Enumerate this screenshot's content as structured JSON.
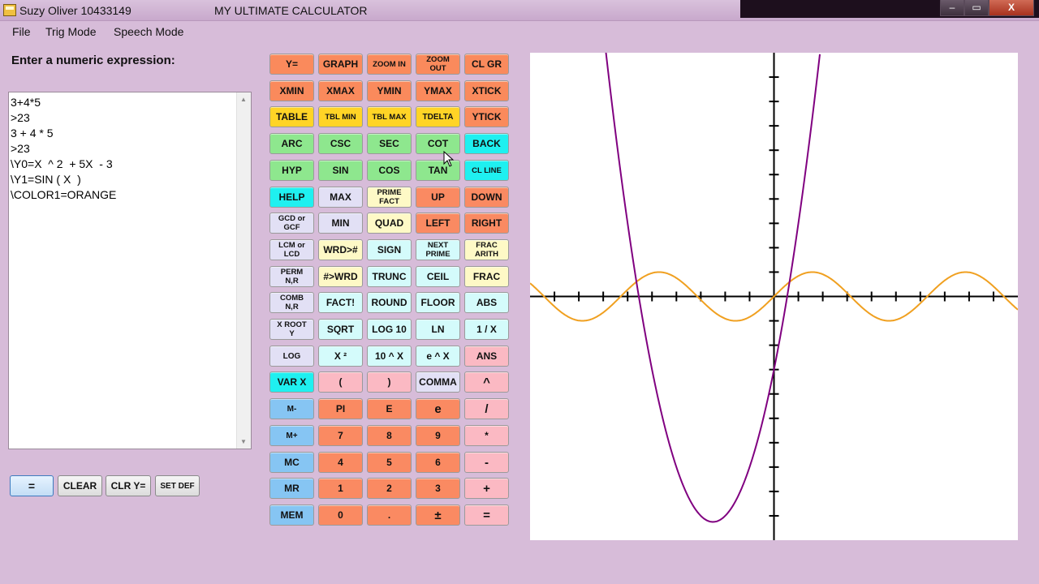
{
  "window": {
    "owner": "Suzy Oliver 10433149",
    "app_title": "MY ULTIMATE CALCULATOR",
    "min_symbol": "‒",
    "max_symbol": "▭",
    "close_symbol": "X"
  },
  "menu": [
    "File",
    "Trig Mode",
    "Speech Mode"
  ],
  "prompt_label": "Enter a numeric expression:",
  "expression_lines": [
    "3+4*5",
    ">23",
    "3 + 4 * 5",
    ">23",
    "\\Y0=X  ^ 2  + 5X  - 3",
    "\\Y1=SIN ( X  )",
    "\\COLOR1=ORANGE"
  ],
  "bottom_buttons": {
    "equals": "=",
    "clear": "CLEAR",
    "clr_y": "CLR Y=",
    "set_def": "SET DEF"
  },
  "keys": [
    [
      {
        "t": "Y=",
        "c": "orange"
      },
      {
        "t": "GRAPH",
        "c": "orange"
      },
      {
        "t": "ZOOM IN",
        "c": "orange",
        "s": "tiny"
      },
      {
        "t": "ZOOM\nOUT",
        "c": "orange",
        "s": "tiny"
      },
      {
        "t": "CL GR",
        "c": "orange"
      }
    ],
    [
      {
        "t": "XMIN",
        "c": "orange"
      },
      {
        "t": "XMAX",
        "c": "orange"
      },
      {
        "t": "YMIN",
        "c": "orange"
      },
      {
        "t": "YMAX",
        "c": "orange"
      },
      {
        "t": "XTICK",
        "c": "orange"
      }
    ],
    [
      {
        "t": "TABLE",
        "c": "yellow"
      },
      {
        "t": "TBL MIN",
        "c": "yellow",
        "s": "tiny"
      },
      {
        "t": "TBL MAX",
        "c": "yellow",
        "s": "tiny"
      },
      {
        "t": "TDELTA",
        "c": "yellow",
        "s": "sm"
      },
      {
        "t": "YTICK",
        "c": "orange"
      }
    ],
    [
      {
        "t": "ARC",
        "c": "green"
      },
      {
        "t": "CSC",
        "c": "green"
      },
      {
        "t": "SEC",
        "c": "green"
      },
      {
        "t": "COT",
        "c": "green"
      },
      {
        "t": "BACK",
        "c": "cyan"
      }
    ],
    [
      {
        "t": "HYP",
        "c": "green"
      },
      {
        "t": "SIN",
        "c": "green"
      },
      {
        "t": "COS",
        "c": "green"
      },
      {
        "t": "TAN",
        "c": "green"
      },
      {
        "t": "CL LINE",
        "c": "cyan",
        "s": "tiny"
      }
    ],
    [
      {
        "t": "HELP",
        "c": "cyan"
      },
      {
        "t": "MAX",
        "c": "lav"
      },
      {
        "t": "PRIME\nFACT",
        "c": "cream",
        "s": "tiny"
      },
      {
        "t": "UP",
        "c": "salmon"
      },
      {
        "t": "DOWN",
        "c": "salmon"
      }
    ],
    [
      {
        "t": "GCD or\nGCF",
        "c": "lav",
        "s": "tiny"
      },
      {
        "t": "MIN",
        "c": "lav"
      },
      {
        "t": "QUAD",
        "c": "cream"
      },
      {
        "t": "LEFT",
        "c": "salmon"
      },
      {
        "t": "RIGHT",
        "c": "salmon"
      }
    ],
    [
      {
        "t": "LCM or\nLCD",
        "c": "lav",
        "s": "tiny"
      },
      {
        "t": "WRD>#",
        "c": "cream"
      },
      {
        "t": "SIGN",
        "c": "lcyan"
      },
      {
        "t": "NEXT\nPRIME",
        "c": "lcyan",
        "s": "tiny"
      },
      {
        "t": "FRAC\nARITH",
        "c": "cream",
        "s": "tiny"
      }
    ],
    [
      {
        "t": "PERM\nN,R",
        "c": "lav",
        "s": "tiny"
      },
      {
        "t": "#>WRD",
        "c": "cream"
      },
      {
        "t": "TRUNC",
        "c": "lcyan"
      },
      {
        "t": "CEIL",
        "c": "lcyan"
      },
      {
        "t": "FRAC",
        "c": "cream"
      }
    ],
    [
      {
        "t": "COMB\nN,R",
        "c": "lav",
        "s": "tiny"
      },
      {
        "t": "FACT!",
        "c": "lcyan"
      },
      {
        "t": "ROUND",
        "c": "lcyan"
      },
      {
        "t": "FLOOR",
        "c": "lcyan"
      },
      {
        "t": "ABS",
        "c": "lcyan"
      }
    ],
    [
      {
        "t": "X ROOT\nY",
        "c": "lav",
        "s": "tiny"
      },
      {
        "t": "SQRT",
        "c": "lcyan"
      },
      {
        "t": "LOG 10",
        "c": "lcyan"
      },
      {
        "t": "LN",
        "c": "lcyan"
      },
      {
        "t": "1 / X",
        "c": "lcyan"
      }
    ],
    [
      {
        "t": "LOG\n ",
        "c": "lav",
        "s": "sm"
      },
      {
        "t": "X ²",
        "c": "lcyan"
      },
      {
        "t": "10 ^ X",
        "c": "lcyan"
      },
      {
        "t": "e ^ X",
        "c": "lcyan"
      },
      {
        "t": "ANS",
        "c": "pink"
      }
    ],
    [
      {
        "t": "VAR X",
        "c": "cyan"
      },
      {
        "t": "(",
        "c": "pink"
      },
      {
        "t": ")",
        "c": "pink"
      },
      {
        "t": "COMMA",
        "c": "lav"
      },
      {
        "t": "^",
        "c": "pink",
        "s": "lg"
      }
    ],
    [
      {
        "t": "M-",
        "c": "blue",
        "s": "sm"
      },
      {
        "t": "PI",
        "c": "salmon"
      },
      {
        "t": "E",
        "c": "salmon"
      },
      {
        "t": "e",
        "c": "salmon",
        "s": "lg"
      },
      {
        "t": "/",
        "c": "pink",
        "s": "lg"
      }
    ],
    [
      {
        "t": "M+",
        "c": "blue",
        "s": "sm"
      },
      {
        "t": "7",
        "c": "salmon"
      },
      {
        "t": "8",
        "c": "salmon"
      },
      {
        "t": "9",
        "c": "salmon"
      },
      {
        "t": "*",
        "c": "pink"
      }
    ],
    [
      {
        "t": "MC",
        "c": "blue"
      },
      {
        "t": "4",
        "c": "salmon"
      },
      {
        "t": "5",
        "c": "salmon"
      },
      {
        "t": "6",
        "c": "salmon"
      },
      {
        "t": "-",
        "c": "pink",
        "s": "lg"
      }
    ],
    [
      {
        "t": "MR",
        "c": "blue"
      },
      {
        "t": "1",
        "c": "salmon"
      },
      {
        "t": "2",
        "c": "salmon"
      },
      {
        "t": "3",
        "c": "salmon"
      },
      {
        "t": "+",
        "c": "pink",
        "s": "lg"
      }
    ],
    [
      {
        "t": "MEM",
        "c": "blue"
      },
      {
        "t": "0",
        "c": "salmon"
      },
      {
        "t": ".",
        "c": "salmon"
      },
      {
        "t": "±",
        "c": "salmon",
        "s": "lg"
      },
      {
        "t": "=",
        "c": "pink",
        "s": "lg"
      }
    ]
  ],
  "graph": {
    "x_window": [
      -10,
      10
    ],
    "y_window": [
      -10,
      10
    ],
    "tick_step": 1,
    "y0": {
      "expression": "X^2+5X-3",
      "color": "#800080"
    },
    "y1": {
      "expression": "SIN(X)",
      "color": "#f0a020"
    },
    "axis_color": "#000000"
  },
  "cursor_icon": "arrow-cursor-icon"
}
